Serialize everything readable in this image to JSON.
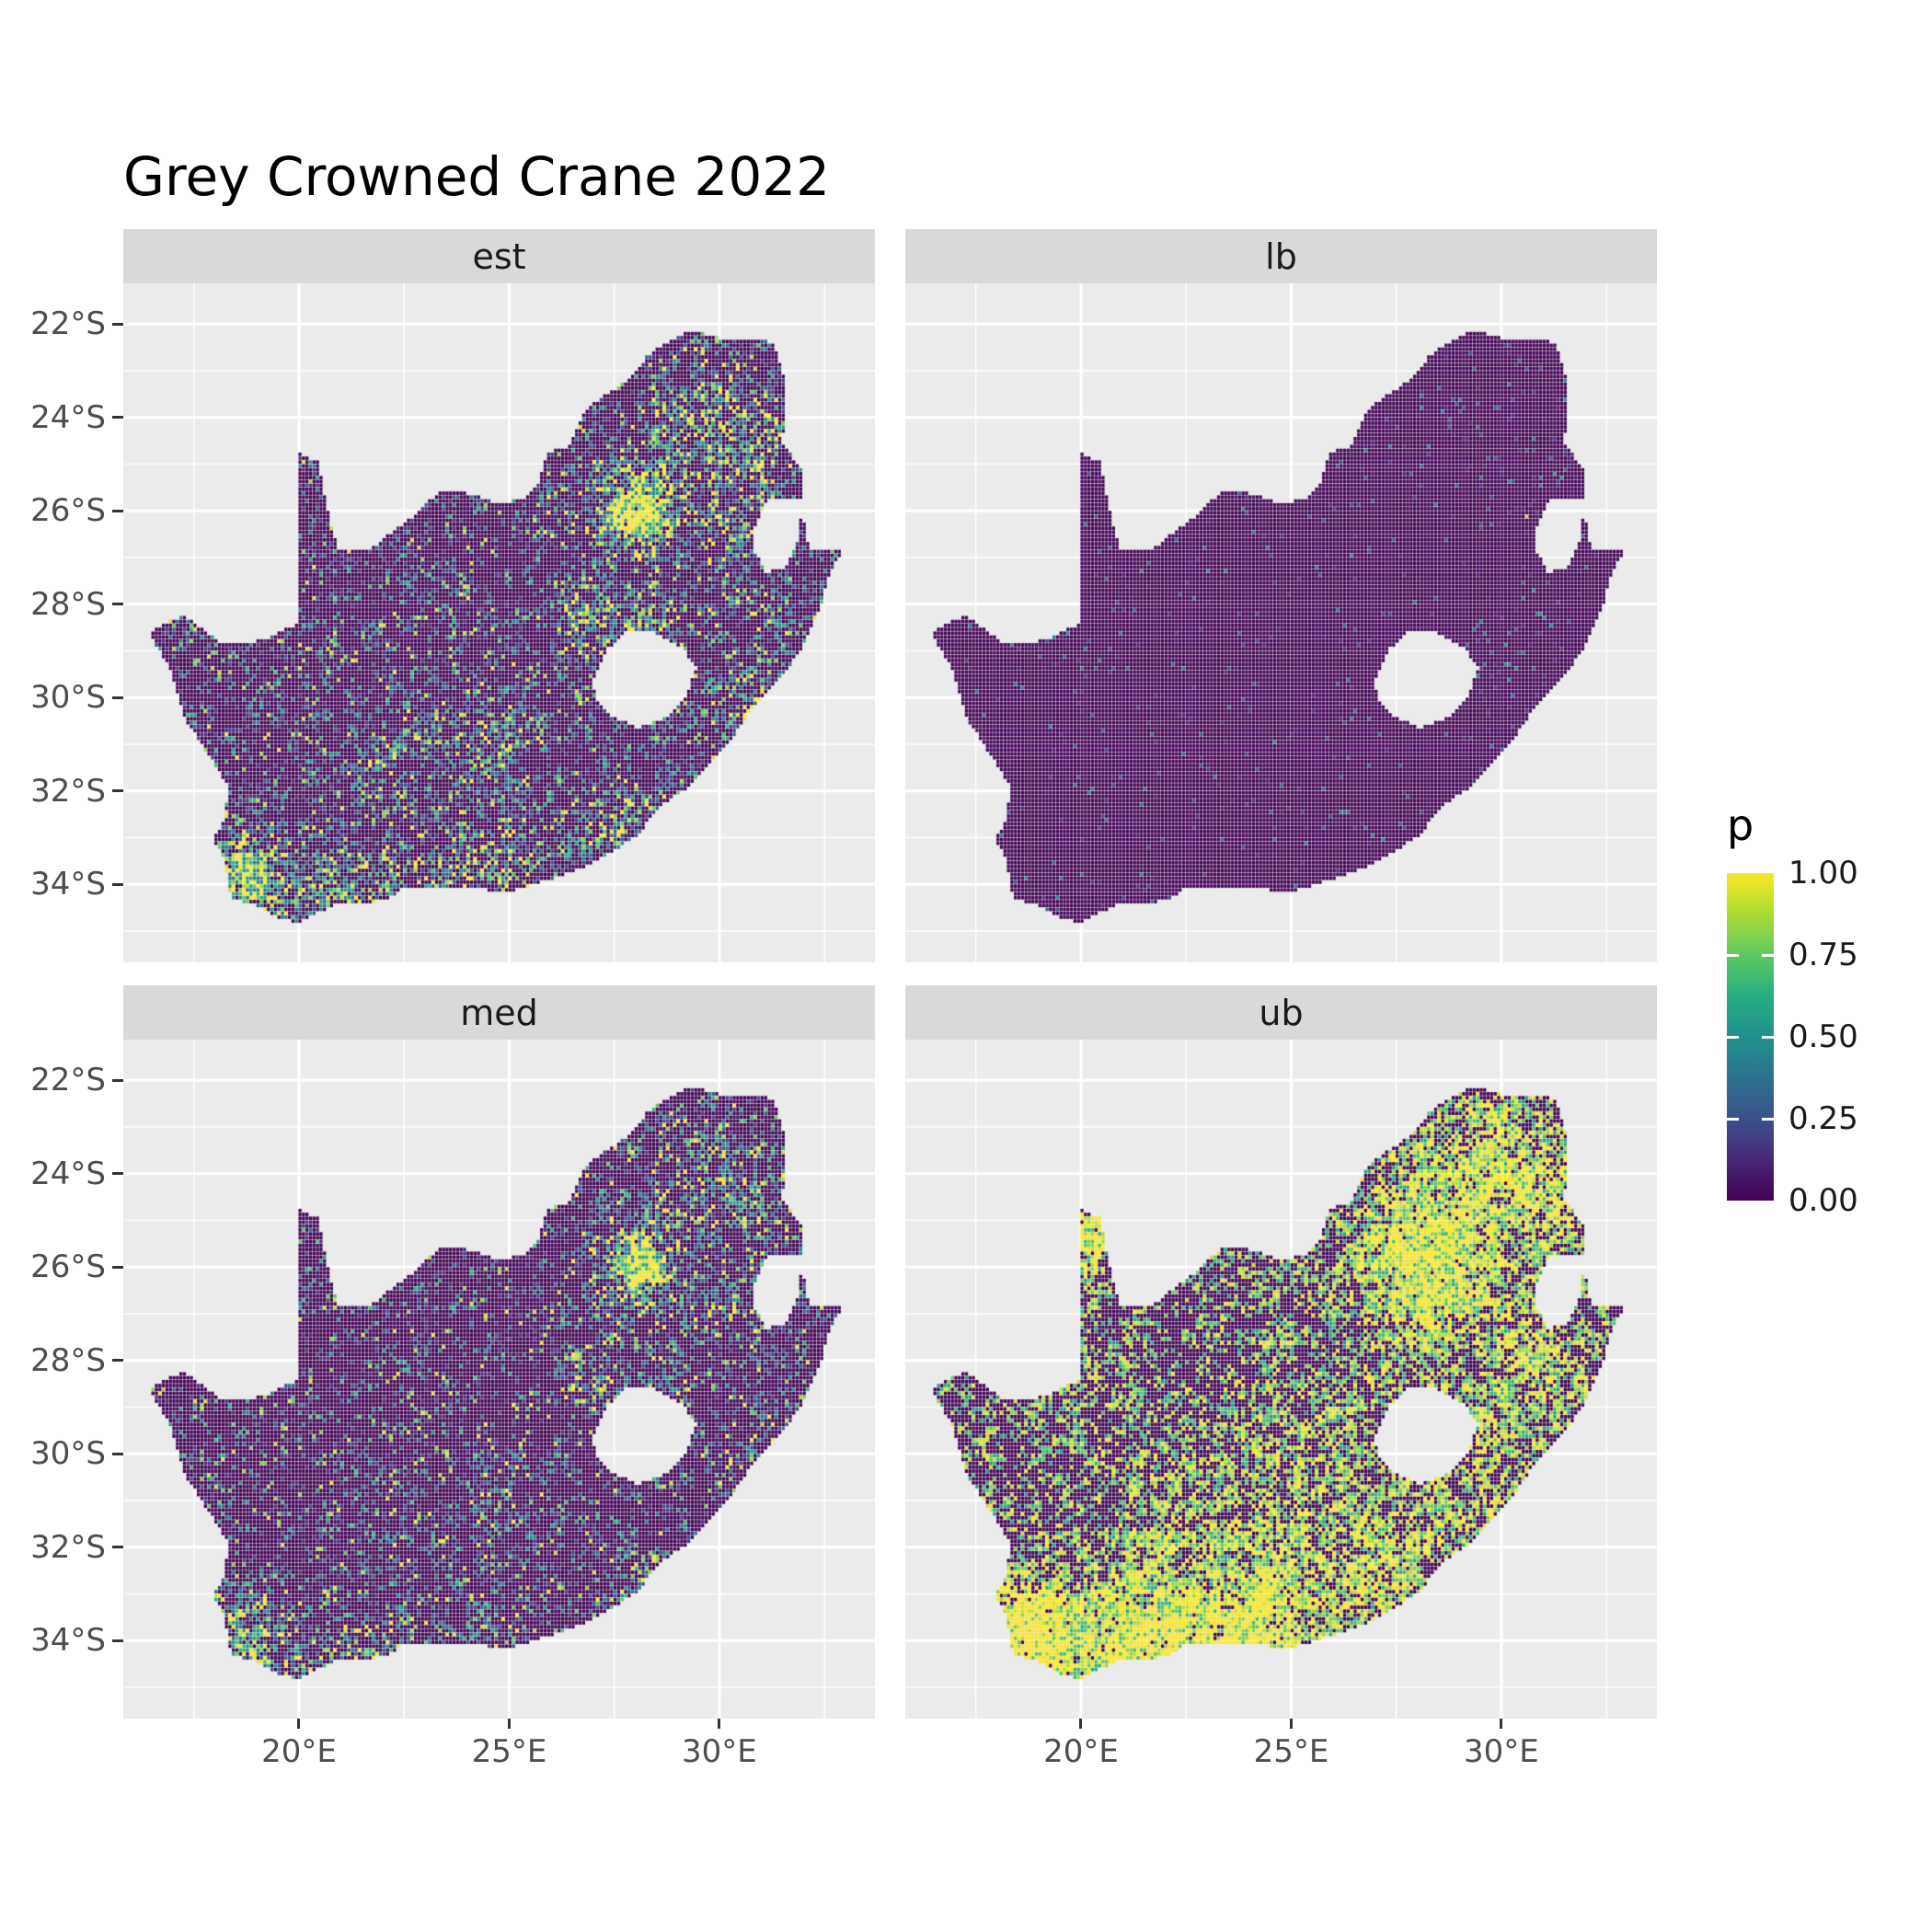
{
  "chart_data": {
    "type": "heatmap",
    "subtype": "faceted-raster-map",
    "title": "Grey Crowned Crane 2022",
    "map_region": "South Africa",
    "facet_labels": [
      "est",
      "lb",
      "med",
      "ub"
    ],
    "facets": [
      {
        "label": "est",
        "seed": 11,
        "density": 0.2,
        "mag_lo": 0.14,
        "mag_hi": 1.0,
        "gamma": 2.3,
        "yellow_cut": 0.945,
        "hotspots": [
          [
            28.0,
            -25.9,
            1.2,
            0.6,
            0.45
          ],
          [
            28.15,
            -26.0,
            0.5,
            0.9,
            0.75
          ],
          [
            29.6,
            -23.8,
            1.3,
            0.3,
            0.25
          ],
          [
            31.0,
            -24.8,
            1.0,
            0.3,
            0.3
          ],
          [
            30.6,
            -26.8,
            1.2,
            0.25,
            0.2
          ],
          [
            26.8,
            -28.3,
            0.8,
            0.3,
            0.3
          ],
          [
            28.4,
            -28.3,
            0.9,
            0.25,
            0.2
          ],
          [
            24.6,
            -30.9,
            1.3,
            0.2,
            0.2
          ],
          [
            22.2,
            -31.4,
            1.0,
            0.18,
            0.15
          ],
          [
            19.0,
            -34.2,
            1.1,
            0.45,
            0.35
          ],
          [
            21.3,
            -34.3,
            1.3,
            0.35,
            0.3
          ],
          [
            24.2,
            -34.1,
            1.4,
            0.3,
            0.3
          ],
          [
            27.6,
            -32.9,
            1.0,
            0.28,
            0.25
          ],
          [
            18.6,
            -33.6,
            0.8,
            0.4,
            0.35
          ],
          [
            30.9,
            -29.9,
            1.0,
            0.22,
            0.2
          ]
        ]
      },
      {
        "label": "lb",
        "seed": 47,
        "density": 0.022,
        "mag_lo": 0.07,
        "mag_hi": 0.5,
        "gamma": 2.0,
        "yellow_cut": 0.9985,
        "hotspots": [
          [
            30.2,
            -29.4,
            1.0,
            0.06,
            0.08
          ],
          [
            30.9,
            -28.0,
            0.8,
            0.06,
            0.08
          ],
          [
            29.9,
            -24.3,
            1.2,
            0.05,
            0.05
          ],
          [
            31.1,
            -25.4,
            0.8,
            0.05,
            0.06
          ]
        ]
      },
      {
        "label": "med",
        "seed": 29,
        "density": 0.16,
        "mag_lo": 0.13,
        "mag_hi": 1.0,
        "gamma": 2.5,
        "yellow_cut": 0.955,
        "hotspots": [
          [
            28.0,
            -25.9,
            1.2,
            0.5,
            0.38
          ],
          [
            28.15,
            -26.0,
            0.5,
            0.75,
            0.6
          ],
          [
            29.6,
            -23.8,
            1.3,
            0.24,
            0.2
          ],
          [
            31.0,
            -24.8,
            1.0,
            0.24,
            0.24
          ],
          [
            30.6,
            -26.8,
            1.2,
            0.2,
            0.16
          ],
          [
            26.8,
            -28.3,
            0.8,
            0.24,
            0.24
          ],
          [
            28.4,
            -28.3,
            0.9,
            0.2,
            0.16
          ],
          [
            24.6,
            -30.9,
            1.3,
            0.16,
            0.16
          ],
          [
            22.2,
            -31.4,
            1.0,
            0.14,
            0.12
          ],
          [
            19.0,
            -34.2,
            1.1,
            0.36,
            0.28
          ],
          [
            21.3,
            -34.3,
            1.3,
            0.28,
            0.24
          ],
          [
            24.2,
            -34.1,
            1.4,
            0.24,
            0.24
          ],
          [
            27.6,
            -32.9,
            1.0,
            0.22,
            0.2
          ],
          [
            18.6,
            -33.6,
            0.8,
            0.32,
            0.28
          ],
          [
            30.9,
            -29.9,
            1.0,
            0.18,
            0.16
          ]
        ]
      },
      {
        "label": "ub",
        "seed": 71,
        "density": 0.3,
        "mag_lo": 0.5,
        "mag_hi": 1.0,
        "gamma": 0.9,
        "yellow_cut": 0.62,
        "hotspots": [
          [
            28.0,
            -25.9,
            1.6,
            0.85,
            0.3
          ],
          [
            29.8,
            -23.8,
            1.6,
            0.4,
            0.2
          ],
          [
            31.2,
            -24.6,
            1.0,
            0.35,
            0.2
          ],
          [
            30.8,
            -27.6,
            1.4,
            0.35,
            0.2
          ],
          [
            20.4,
            -25.3,
            0.9,
            0.7,
            0.3
          ],
          [
            19.0,
            -34.2,
            1.2,
            0.8,
            0.35
          ],
          [
            21.5,
            -34.3,
            1.5,
            0.7,
            0.3
          ],
          [
            24.3,
            -34.0,
            1.5,
            0.55,
            0.3
          ],
          [
            18.7,
            -33.6,
            0.9,
            0.6,
            0.3
          ],
          [
            23.0,
            -32.3,
            2.5,
            0.25,
            0.1
          ],
          [
            26.5,
            -30.8,
            2.5,
            0.2,
            0.1
          ],
          [
            29.5,
            -30.5,
            1.5,
            0.25,
            0.15
          ],
          [
            27.3,
            -32.6,
            1.2,
            0.3,
            0.15
          ]
        ]
      }
    ],
    "x_axis": {
      "ticks": [
        {
          "label": "20°E",
          "value": 20
        },
        {
          "label": "25°E",
          "value": 25
        },
        {
          "label": "30°E",
          "value": 30
        }
      ],
      "minor": [
        17.5,
        22.5,
        27.5,
        32.5
      ],
      "domain": [
        15.82,
        33.7
      ]
    },
    "y_axis": {
      "ticks": [
        {
          "label": "22°S",
          "value": -22
        },
        {
          "label": "24°S",
          "value": -24
        },
        {
          "label": "26°S",
          "value": -26
        },
        {
          "label": "28°S",
          "value": -28
        },
        {
          "label": "30°S",
          "value": -30
        },
        {
          "label": "32°S",
          "value": -32
        },
        {
          "label": "34°S",
          "value": -34
        }
      ],
      "minor": [
        -23,
        -25,
        -27,
        -29,
        -31,
        -33,
        -35
      ],
      "domain": [
        -35.67,
        -21.13
      ]
    },
    "legend": {
      "title": "p",
      "ticks": [
        {
          "label": "1.00",
          "value": 1.0
        },
        {
          "label": "0.75",
          "value": 0.75
        },
        {
          "label": "0.50",
          "value": 0.5
        },
        {
          "label": "0.25",
          "value": 0.25
        },
        {
          "label": "0.00",
          "value": 0.0
        }
      ]
    },
    "colormap": {
      "name": "viridis",
      "stops": [
        [
          0,
          "#440154"
        ],
        [
          0.125,
          "#482878"
        ],
        [
          0.25,
          "#3B528B"
        ],
        [
          0.375,
          "#2C728E"
        ],
        [
          0.5,
          "#21918C"
        ],
        [
          0.625,
          "#27AD81"
        ],
        [
          0.75,
          "#5EC962"
        ],
        [
          0.875,
          "#AADC32"
        ],
        [
          1,
          "#FDE725"
        ]
      ]
    },
    "cell_size_deg": 0.0833,
    "outline": [
      [
        16.45,
        -28.58
      ],
      [
        16.8,
        -28.4
      ],
      [
        17.25,
        -28.24
      ],
      [
        17.7,
        -28.52
      ],
      [
        18.2,
        -28.87
      ],
      [
        18.75,
        -28.84
      ],
      [
        19.3,
        -28.72
      ],
      [
        19.7,
        -28.5
      ],
      [
        19.99,
        -28.43
      ],
      [
        19.99,
        -24.76
      ],
      [
        20.45,
        -24.95
      ],
      [
        20.62,
        -25.7
      ],
      [
        20.78,
        -26.35
      ],
      [
        20.95,
        -26.85
      ],
      [
        21.65,
        -26.86
      ],
      [
        22.15,
        -26.5
      ],
      [
        22.75,
        -26.1
      ],
      [
        23.3,
        -25.62
      ],
      [
        23.95,
        -25.62
      ],
      [
        24.7,
        -25.82
      ],
      [
        25.35,
        -25.77
      ],
      [
        25.68,
        -25.47
      ],
      [
        25.9,
        -24.75
      ],
      [
        26.4,
        -24.63
      ],
      [
        26.85,
        -23.8
      ],
      [
        27.2,
        -23.58
      ],
      [
        27.95,
        -23.1
      ],
      [
        28.3,
        -22.67
      ],
      [
        29.05,
        -22.23
      ],
      [
        29.45,
        -22.15
      ],
      [
        30.0,
        -22.31
      ],
      [
        30.85,
        -22.3
      ],
      [
        31.3,
        -22.42
      ],
      [
        31.55,
        -23.2
      ],
      [
        31.56,
        -23.95
      ],
      [
        31.5,
        -24.55
      ],
      [
        31.95,
        -25.1
      ],
      [
        32.02,
        -25.65
      ],
      [
        32.0,
        -26.1
      ],
      [
        32.07,
        -26.5
      ],
      [
        32.13,
        -26.86
      ],
      [
        32.9,
        -26.87
      ],
      [
        32.58,
        -27.45
      ],
      [
        32.38,
        -28.15
      ],
      [
        32.05,
        -28.8
      ],
      [
        31.65,
        -29.35
      ],
      [
        31.1,
        -29.88
      ],
      [
        30.65,
        -30.4
      ],
      [
        30.25,
        -30.95
      ],
      [
        29.85,
        -31.35
      ],
      [
        29.25,
        -31.95
      ],
      [
        28.6,
        -32.3
      ],
      [
        28.05,
        -32.95
      ],
      [
        27.45,
        -33.3
      ],
      [
        26.85,
        -33.6
      ],
      [
        26.35,
        -33.78
      ],
      [
        25.65,
        -33.98
      ],
      [
        24.9,
        -34.2
      ],
      [
        24.15,
        -34.05
      ],
      [
        23.35,
        -34.1
      ],
      [
        22.55,
        -34.05
      ],
      [
        22.1,
        -34.3
      ],
      [
        21.4,
        -34.45
      ],
      [
        20.8,
        -34.45
      ],
      [
        20.0,
        -34.82
      ],
      [
        19.6,
        -34.76
      ],
      [
        19.3,
        -34.6
      ],
      [
        18.9,
        -34.4
      ],
      [
        18.45,
        -34.35
      ],
      [
        18.3,
        -34.0
      ],
      [
        18.25,
        -33.5
      ],
      [
        17.95,
        -33.0
      ],
      [
        18.25,
        -32.6
      ],
      [
        18.3,
        -31.9
      ],
      [
        17.9,
        -31.3
      ],
      [
        17.25,
        -30.4
      ],
      [
        16.95,
        -29.4
      ],
      [
        16.6,
        -28.9
      ]
    ],
    "holes": [
      [
        [
          27.0,
          -29.65
        ],
        [
          27.3,
          -29.0
        ],
        [
          27.75,
          -28.6
        ],
        [
          28.45,
          -28.6
        ],
        [
          29.1,
          -28.92
        ],
        [
          29.45,
          -29.35
        ],
        [
          29.25,
          -29.9
        ],
        [
          28.8,
          -30.4
        ],
        [
          28.05,
          -30.65
        ],
        [
          27.45,
          -30.4
        ],
        [
          27.05,
          -30.05
        ]
      ],
      [
        [
          30.82,
          -26.35
        ],
        [
          31.15,
          -25.75
        ],
        [
          31.95,
          -25.78
        ],
        [
          31.92,
          -26.55
        ],
        [
          31.55,
          -27.25
        ],
        [
          31.1,
          -27.3
        ],
        [
          30.85,
          -26.9
        ]
      ]
    ]
  },
  "style": {
    "background": "#FFFFFF",
    "panel_bg": "#EBEBEB",
    "strip_bg": "#D9D9D9",
    "strip_text": "#1A1A1A",
    "axis_text": "#4D4D4D",
    "tick_color": "#333333",
    "grid_color": "#FFFFFF",
    "title_color": "#000000",
    "base_value_color": "#440154"
  }
}
